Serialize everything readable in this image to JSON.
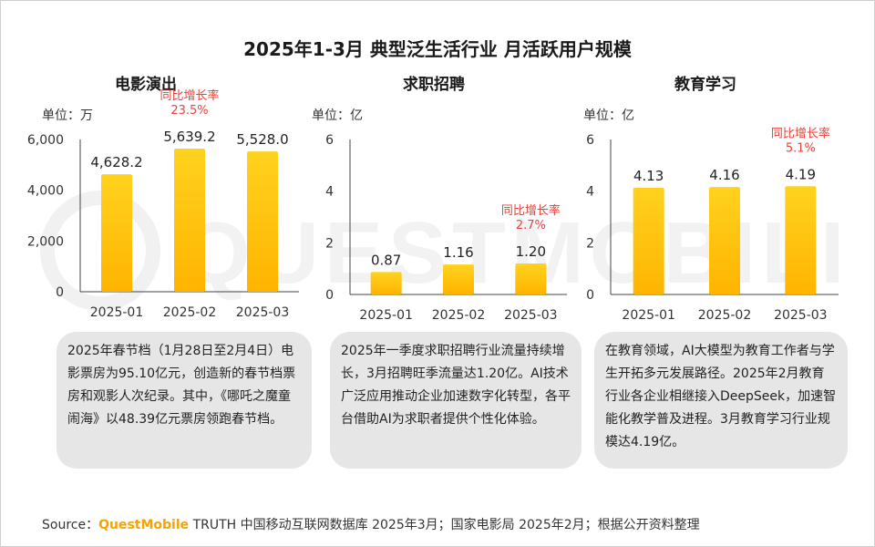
{
  "title": "2025年1-3月 典型泛生活行业 月活跃用户规模",
  "watermark": "QUESTMOBILE",
  "source": {
    "label": "Source：",
    "brand": "QuestMobile",
    "text": " TRUTH 中国移动互联网数据库 2025年3月；国家电影局 2025年2月；根据公开资料整理"
  },
  "colors": {
    "bar_top": "#ffd21f",
    "bar_bottom": "#ffb400",
    "growth": "#e8413c",
    "axis": "#444444",
    "note_bg": "#e6e6e6"
  },
  "chart_data": [
    {
      "type": "bar",
      "title": "电影演出",
      "unit": "单位：万",
      "categories": [
        "2025-01",
        "2025-02",
        "2025-03"
      ],
      "values": [
        4628.2,
        5639.2,
        5528.0
      ],
      "value_labels": [
        "4,628.2",
        "5,639.2",
        "5,528.0"
      ],
      "ylim": [
        0,
        6000
      ],
      "yticks": [
        0,
        2000,
        4000,
        6000
      ],
      "ytick_labels": [
        "0",
        "2,000",
        "4,000",
        "6,000"
      ],
      "annotation": {
        "label": "同比增长率",
        "value": "23.5%",
        "category_index": 1
      },
      "note": "2025年春节档（1月28日至2月4日）电影票房为95.10亿元，创造新的春节档票房和观影人次纪录。其中，《哪吒之魔童闹海》以48.39亿元票房领跑春节档。"
    },
    {
      "type": "bar",
      "title": "求职招聘",
      "unit": "单位：亿",
      "categories": [
        "2025-01",
        "2025-02",
        "2025-03"
      ],
      "values": [
        0.87,
        1.16,
        1.2
      ],
      "value_labels": [
        "0.87",
        "1.16",
        "1.20"
      ],
      "ylim": [
        0,
        6
      ],
      "yticks": [
        0,
        2,
        4,
        6
      ],
      "ytick_labels": [
        "0",
        "2",
        "4",
        "6"
      ],
      "annotation": {
        "label": "同比增长率",
        "value": "2.7%",
        "category_index": 2
      },
      "note": "2025年一季度求职招聘行业流量持续增长，3月招聘旺季流量达1.20亿。AI技术广泛应用推动企业加速数字化转型，各平台借助AI为求职者提供个性化体验。"
    },
    {
      "type": "bar",
      "title": "教育学习",
      "unit": "单位：亿",
      "categories": [
        "2025-01",
        "2025-02",
        "2025-03"
      ],
      "values": [
        4.13,
        4.16,
        4.19
      ],
      "value_labels": [
        "4.13",
        "4.16",
        "4.19"
      ],
      "ylim": [
        0,
        6
      ],
      "yticks": [
        0,
        2,
        4,
        6
      ],
      "ytick_labels": [
        "0",
        "2",
        "4",
        "6"
      ],
      "annotation": {
        "label": "同比增长率",
        "value": "5.1%",
        "category_index": 2
      },
      "note": "在教育领域，AI大模型为教育工作者与学生开拓多元发展路径。2025年2月教育行业各企业相继接入DeepSeek，加速智能化教学普及进程。3月教育学习行业规模达4.19亿。"
    }
  ]
}
